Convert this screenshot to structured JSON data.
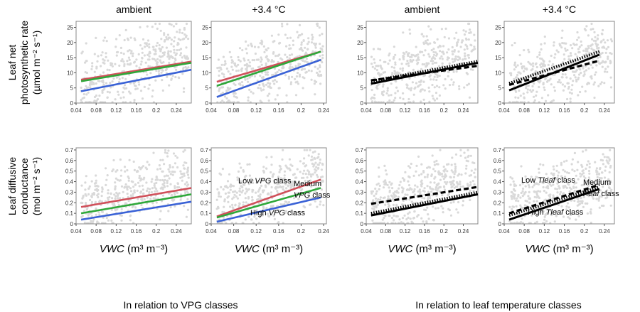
{
  "column_titles": [
    "ambient",
    "+3.4 °C",
    "ambient",
    "+3.4 °C"
  ],
  "row_labels": [
    [
      "Leaf net",
      "photosynthetic rate",
      "(µmol m⁻² s⁻¹)"
    ],
    [
      "Leaf diffusive",
      "conductance",
      "(mol m⁻² s⁻¹)"
    ]
  ],
  "xlabel": {
    "italic": "VWC",
    "rest": " (m³ m⁻³)"
  },
  "group_labels": [
    "In relation to VPG classes",
    "In relation to leaf temperature classes"
  ],
  "colors": {
    "low": "#d0505a",
    "medium": "#2fa83a",
    "high": "#3a62d6",
    "black": "#000000",
    "points": "#d9d9d9",
    "frame": "#888888"
  },
  "chart_data": [
    {
      "type": "scatter+line",
      "title": "ambient",
      "ylabel": "Leaf net photosynthetic rate (µmol m⁻² s⁻¹)",
      "xlabel": "VWC (m³ m⁻³)",
      "xlim": [
        0.04,
        0.27
      ],
      "ylim": [
        0,
        27
      ],
      "xticks": [
        "0.04",
        "0.08",
        "0.12",
        "0.16",
        "0.2",
        "0.24"
      ],
      "yticks": [
        "0",
        "5",
        "10",
        "15",
        "20",
        "25"
      ],
      "lines": [
        {
          "class": "low",
          "style": "red",
          "x": [
            0.05,
            0.27
          ],
          "y": [
            7.7,
            13.7
          ]
        },
        {
          "class": "medium",
          "style": "green",
          "x": [
            0.05,
            0.27
          ],
          "y": [
            7.2,
            13.3
          ]
        },
        {
          "class": "high",
          "style": "blue",
          "x": [
            0.05,
            0.27
          ],
          "y": [
            3.9,
            11.0
          ]
        }
      ]
    },
    {
      "type": "scatter+line",
      "title": "+3.4 °C",
      "xlim": [
        0.04,
        0.245
      ],
      "ylim": [
        0,
        27
      ],
      "xticks": [
        "0.04",
        "0.08",
        "0.12",
        "0.16",
        "0.2",
        "0.24"
      ],
      "yticks": [
        "0",
        "5",
        "10",
        "15",
        "20",
        "25"
      ],
      "lines": [
        {
          "class": "low",
          "style": "red",
          "x": [
            0.05,
            0.235
          ],
          "y": [
            7.0,
            17.0
          ]
        },
        {
          "class": "medium",
          "style": "green",
          "x": [
            0.05,
            0.235
          ],
          "y": [
            5.7,
            17.0
          ]
        },
        {
          "class": "high",
          "style": "blue",
          "x": [
            0.05,
            0.235
          ],
          "y": [
            2.0,
            14.3
          ]
        }
      ]
    },
    {
      "type": "scatter+line",
      "title": "ambient",
      "xlim": [
        0.04,
        0.27
      ],
      "ylim": [
        0,
        27
      ],
      "xticks": [
        "0.04",
        "0.08",
        "0.12",
        "0.16",
        "0.2",
        "0.24"
      ],
      "yticks": [
        "0",
        "5",
        "10",
        "15",
        "20",
        "25"
      ],
      "lines": [
        {
          "class": "low",
          "style": "dashed",
          "x": [
            0.05,
            0.27
          ],
          "y": [
            7.5,
            12.3
          ]
        },
        {
          "class": "medium",
          "style": "dotted",
          "x": [
            0.05,
            0.27
          ],
          "y": [
            7.2,
            13.8
          ]
        },
        {
          "class": "high",
          "style": "solid",
          "x": [
            0.05,
            0.27
          ],
          "y": [
            6.4,
            13.3
          ]
        }
      ]
    },
    {
      "type": "scatter+line",
      "title": "+3.4 °C",
      "xlim": [
        0.04,
        0.26
      ],
      "ylim": [
        0,
        27
      ],
      "xticks": [
        "0.04",
        "0.08",
        "0.12",
        "0.16",
        "0.2",
        "0.24"
      ],
      "yticks": [
        "0",
        "5",
        "10",
        "15",
        "20",
        "25"
      ],
      "lines": [
        {
          "class": "low",
          "style": "dashed",
          "x": [
            0.05,
            0.23
          ],
          "y": [
            6.0,
            14.0
          ]
        },
        {
          "class": "medium",
          "style": "dotted",
          "x": [
            0.05,
            0.23
          ],
          "y": [
            6.5,
            17.0
          ]
        },
        {
          "class": "high",
          "style": "solid",
          "x": [
            0.05,
            0.23
          ],
          "y": [
            4.2,
            16.0
          ]
        }
      ]
    },
    {
      "type": "scatter+line",
      "ylabel": "Leaf diffusive conductance (mol m⁻² s⁻¹)",
      "xlabel": "VWC (m³ m⁻³)",
      "xlim": [
        0.04,
        0.27
      ],
      "ylim": [
        0,
        0.72
      ],
      "xticks": [
        "0.04",
        "0.08",
        "0.12",
        "0.16",
        "0.2",
        "0.24"
      ],
      "yticks": [
        "0",
        "0.1",
        "0.2",
        "0.3",
        "0.4",
        "0.5",
        "0.6",
        "0.7"
      ],
      "lines": [
        {
          "class": "low",
          "style": "red",
          "x": [
            0.05,
            0.27
          ],
          "y": [
            0.16,
            0.34
          ]
        },
        {
          "class": "medium",
          "style": "green",
          "x": [
            0.05,
            0.27
          ],
          "y": [
            0.1,
            0.28
          ]
        },
        {
          "class": "high",
          "style": "blue",
          "x": [
            0.05,
            0.27
          ],
          "y": [
            0.04,
            0.21
          ]
        }
      ]
    },
    {
      "type": "scatter+line",
      "xlabel": "VWC (m³ m⁻³)",
      "xlim": [
        0.04,
        0.245
      ],
      "ylim": [
        0,
        0.72
      ],
      "xticks": [
        "0.04",
        "0.08",
        "0.12",
        "0.16",
        "0.2",
        "0.24"
      ],
      "yticks": [
        "0",
        "0.1",
        "0.2",
        "0.3",
        "0.4",
        "0.5",
        "0.6",
        "0.7"
      ],
      "lines": [
        {
          "class": "low",
          "style": "red",
          "x": [
            0.05,
            0.235
          ],
          "y": [
            0.07,
            0.42
          ]
        },
        {
          "class": "medium",
          "style": "green",
          "x": [
            0.05,
            0.235
          ],
          "y": [
            0.06,
            0.34
          ]
        },
        {
          "class": "high",
          "style": "blue",
          "x": [
            0.05,
            0.235
          ],
          "y": [
            0.02,
            0.25
          ]
        }
      ],
      "annotations": [
        {
          "label": [
            "Low ",
            "VPG",
            " class"
          ]
        },
        {
          "label": [
            "Medium",
            "",
            " "
          ]
        },
        {
          "label": [
            "",
            "VPG",
            " class"
          ]
        },
        {
          "label": [
            "High ",
            "VPG",
            " class"
          ]
        }
      ]
    },
    {
      "type": "scatter+line",
      "xlabel": "VWC (m³ m⁻³)",
      "xlim": [
        0.04,
        0.27
      ],
      "ylim": [
        0,
        0.72
      ],
      "xticks": [
        "0.04",
        "0.08",
        "0.12",
        "0.16",
        "0.2",
        "0.24"
      ],
      "yticks": [
        "0",
        "0.1",
        "0.2",
        "0.3",
        "0.4",
        "0.5",
        "0.6",
        "0.7"
      ],
      "lines": [
        {
          "class": "low",
          "style": "dashed",
          "x": [
            0.05,
            0.27
          ],
          "y": [
            0.19,
            0.35
          ]
        },
        {
          "class": "medium",
          "style": "dotted",
          "x": [
            0.05,
            0.27
          ],
          "y": [
            0.1,
            0.3
          ]
        },
        {
          "class": "high",
          "style": "solid",
          "x": [
            0.05,
            0.27
          ],
          "y": [
            0.08,
            0.28
          ]
        }
      ]
    },
    {
      "type": "scatter+line",
      "xlabel": "VWC (m³ m⁻³)",
      "xlim": [
        0.04,
        0.26
      ],
      "ylim": [
        0,
        0.72
      ],
      "xticks": [
        "0.04",
        "0.08",
        "0.12",
        "0.16",
        "0.2",
        "0.24"
      ],
      "yticks": [
        "0",
        "0.1",
        "0.2",
        "0.3",
        "0.4",
        "0.5",
        "0.6",
        "0.7"
      ],
      "lines": [
        {
          "class": "low",
          "style": "dashed",
          "x": [
            0.05,
            0.23
          ],
          "y": [
            0.1,
            0.37
          ]
        },
        {
          "class": "medium",
          "style": "dotted",
          "x": [
            0.05,
            0.23
          ],
          "y": [
            0.08,
            0.35
          ]
        },
        {
          "class": "high",
          "style": "solid",
          "x": [
            0.05,
            0.23
          ],
          "y": [
            0.04,
            0.33
          ]
        }
      ],
      "annotations": [
        {
          "label": [
            "Low ",
            "Tleaf",
            " class"
          ]
        },
        {
          "label": [
            "Medium",
            "",
            " "
          ]
        },
        {
          "label": [
            "",
            "Tleaf",
            " class"
          ]
        },
        {
          "label": [
            "High ",
            "Tleaf",
            " class"
          ]
        }
      ]
    }
  ]
}
